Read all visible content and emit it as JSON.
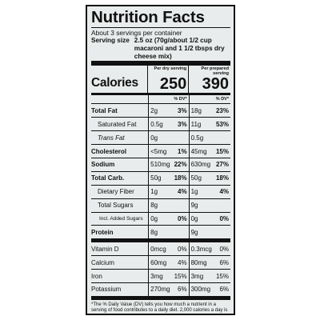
{
  "label": {
    "title": "Nutrition Facts",
    "servings": "About 3 servings per container",
    "serving_size_label": "Serving size",
    "serving_size_value": "2.5 oz (70g/about 1/2 cup macaroni and 1 1/2 tbsps dry cheese mix)",
    "col1_header": "Per dry serving",
    "col2_header": "Per prepared serving",
    "calories_label": "Calories",
    "calories_dry": "250",
    "calories_prepared": "390",
    "dv_header": "% DV*",
    "nutrients": [
      {
        "name": "Total Fat",
        "dry": "2g",
        "dry_dv": "3%",
        "prep": "18g",
        "prep_dv": "23%"
      },
      {
        "name": "Saturated Fat",
        "dry": "0.5g",
        "dry_dv": "3%",
        "prep": "11g",
        "prep_dv": "53%"
      },
      {
        "name": "Trans Fat",
        "dry": "0g",
        "dry_dv": "",
        "prep": "0.5g",
        "prep_dv": ""
      },
      {
        "name": "Cholesterol",
        "dry": "<5mg",
        "dry_dv": "1%",
        "prep": "45mg",
        "prep_dv": "15%"
      },
      {
        "name": "Sodium",
        "dry": "510mg",
        "dry_dv": "22%",
        "prep": "630mg",
        "prep_dv": "27%"
      },
      {
        "name": "Total Carb.",
        "dry": "50g",
        "dry_dv": "18%",
        "prep": "50g",
        "prep_dv": "18%"
      },
      {
        "name": "Dietary Fiber",
        "dry": "1g",
        "dry_dv": "4%",
        "prep": "1g",
        "prep_dv": "4%"
      },
      {
        "name": "Total Sugars",
        "dry": "8g",
        "dry_dv": "",
        "prep": "9g",
        "prep_dv": ""
      },
      {
        "name": "Incl. Added Sugars",
        "dry": "0g",
        "dry_dv": "0%",
        "prep": "0g",
        "prep_dv": "0%"
      },
      {
        "name": "Protein",
        "dry": "8g",
        "dry_dv": "",
        "prep": "9g",
        "prep_dv": ""
      }
    ],
    "vitamins": [
      {
        "name": "Vitamin D",
        "dry": "0mcg",
        "dry_dv": "0%",
        "prep": "0.3mcg",
        "prep_dv": "0%"
      },
      {
        "name": "Calcium",
        "dry": "60mg",
        "dry_dv": "4%",
        "prep": "80mg",
        "prep_dv": "6%"
      },
      {
        "name": "Iron",
        "dry": "3mg",
        "dry_dv": "15%",
        "prep": "3mg",
        "prep_dv": "15%"
      },
      {
        "name": "Potassium",
        "dry": "270mg",
        "dry_dv": "6%",
        "prep": "300mg",
        "prep_dv": "6%"
      }
    ],
    "footnote": "*The % Daily Value (DV) tells you how much a nutrient in a serving of food contributes to a daily diet. 2,000 calories a day is used for general nutrition advice."
  },
  "colors": {
    "panel_bg": "#e9ecec",
    "ink": "#111111"
  }
}
